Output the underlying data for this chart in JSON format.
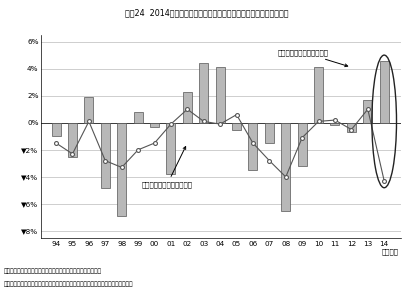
{
  "title": "図表24  2014年度は個人消費下振れにもかかわらず消費税収が上振れ",
  "year_labels": [
    "94",
    "95",
    "96",
    "97",
    "98",
    "99",
    "00",
    "01",
    "02",
    "03",
    "04",
    "05",
    "06",
    "07",
    "08",
    "09",
    "10",
    "11",
    "12",
    "13",
    "14"
  ],
  "bars": [
    -1.0,
    -2.5,
    1.9,
    -4.8,
    -6.9,
    0.8,
    -0.3,
    -3.8,
    2.3,
    4.4,
    4.1,
    -0.5,
    -3.5,
    -1.5,
    -6.5,
    -3.2,
    4.1,
    -0.2,
    -0.7,
    1.7,
    4.6
  ],
  "line": [
    -1.5,
    -2.3,
    0.1,
    -2.8,
    -3.3,
    -2.0,
    -1.5,
    -0.1,
    1.0,
    0.1,
    -0.1,
    0.6,
    -1.5,
    -2.8,
    -4.0,
    -1.1,
    0.1,
    0.2,
    -0.5,
    1.0,
    -4.3
  ],
  "bar_color": "#b8b8b8",
  "bar_edge_color": "#555555",
  "line_color": "#555555",
  "marker_color": "#ffffff",
  "marker_edge_color": "#555555",
  "ylim": [
    -8.5,
    6.5
  ],
  "yticks": [
    6,
    4,
    2,
    0,
    -2,
    -4,
    -6,
    -8
  ],
  "ytick_labels": [
    "6%",
    "4%",
    "2%",
    "0%",
    "▼2%",
    "▼4%",
    "▼6%",
    "▼8%"
  ],
  "xlabel": "（年度）",
  "bar_label": "消費税収の上（下）振れ幅",
  "line_label": "個人消費の上（下）振れ幅",
  "note1": "（注）消費税収の上（下）振れ幅は当初予算と決算の乖離幅。",
  "note2": "　　　個人消費の上（下）振れ幅は名目個人消費の政府見通しと実績値の乖離幅。",
  "figsize": [
    4.13,
    2.9
  ],
  "dpi": 100
}
